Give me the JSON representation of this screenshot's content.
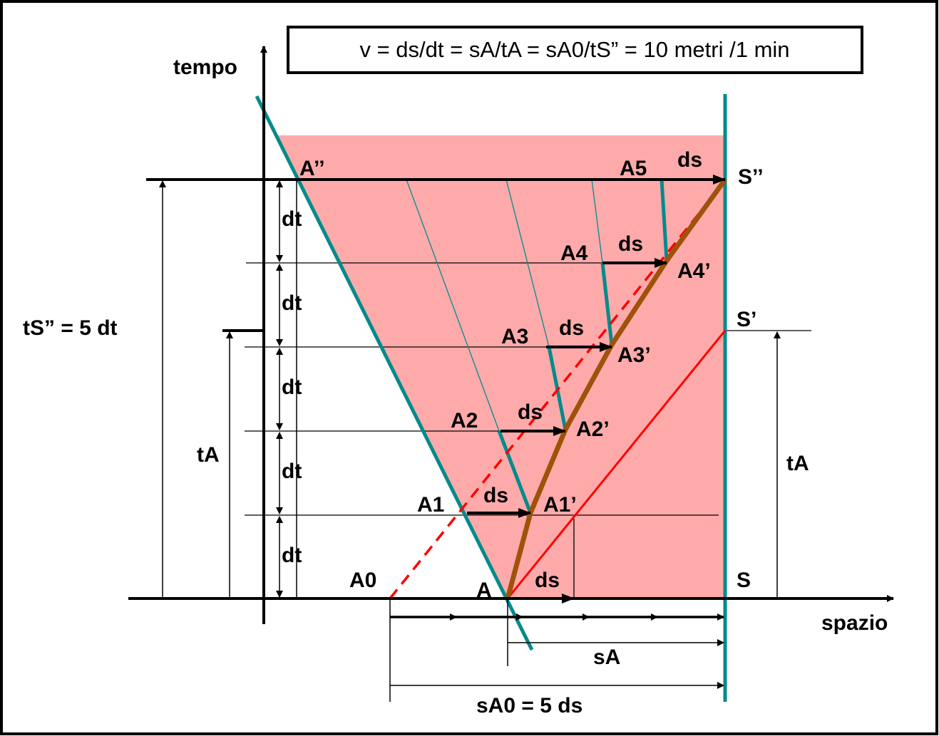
{
  "formula": "v = ds/dt = sA/tA = sA0/tS” = 10 metri /1 min",
  "axes": {
    "y": "tempo",
    "x": "spazio"
  },
  "labels": {
    "A_dd": "A’’",
    "S_dd": "S’’",
    "S_d": "S’",
    "S": "S",
    "A": "A",
    "A0": "A0",
    "A1": "A1",
    "A2": "A2",
    "A3": "A3",
    "A4": "A4",
    "A5": "A5",
    "A1p": "A1’",
    "A2p": "A2’",
    "A3p": "A3’",
    "A4p": "A4’",
    "ds": "ds",
    "dt": "dt",
    "tA": "tA",
    "sA": "sA",
    "tS": "tS” = 5 dt",
    "sA0": "sA0 = 5 ds"
  },
  "colors": {
    "region": "#ffaaaa",
    "teal": "#008b8b",
    "brown": "#a0520a",
    "red": "#ff0000",
    "black": "#000000"
  }
}
